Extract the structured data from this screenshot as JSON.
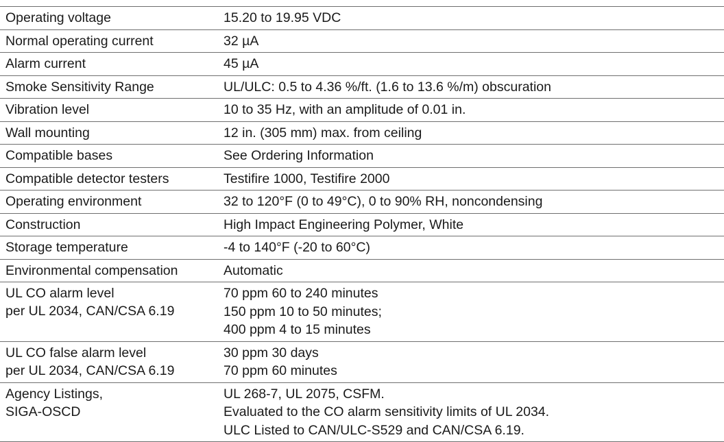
{
  "rows": [
    {
      "label": [
        "Operating voltage"
      ],
      "value": [
        "15.20 to 19.95 VDC"
      ]
    },
    {
      "label": [
        "Normal operating current"
      ],
      "value": [
        "32 µA"
      ]
    },
    {
      "label": [
        "Alarm current"
      ],
      "value": [
        "45 µA"
      ]
    },
    {
      "label": [
        "Smoke Sensitivity Range"
      ],
      "value": [
        "UL/ULC: 0.5 to 4.36 %/ft. (1.6 to 13.6 %/m) obscuration"
      ]
    },
    {
      "label": [
        "Vibration level"
      ],
      "value": [
        "10 to 35 Hz, with an amplitude of 0.01 in."
      ]
    },
    {
      "label": [
        "Wall mounting"
      ],
      "value": [
        "12 in. (305 mm) max. from ceiling"
      ]
    },
    {
      "label": [
        "Compatible bases"
      ],
      "value": [
        "See Ordering Information"
      ]
    },
    {
      "label": [
        "Compatible detector testers"
      ],
      "value": [
        "Testifire 1000, Testifire 2000"
      ]
    },
    {
      "label": [
        "Operating environment"
      ],
      "value": [
        "32 to 120°F (0 to 49°C), 0 to 90% RH, noncondensing"
      ]
    },
    {
      "label": [
        "Construction"
      ],
      "value": [
        "High Impact Engineering Polymer, White"
      ]
    },
    {
      "label": [
        "Storage temperature"
      ],
      "value": [
        "-4 to 140°F (-20 to 60°C)"
      ]
    },
    {
      "label": [
        "Environmental compensation"
      ],
      "value": [
        "Automatic"
      ]
    },
    {
      "label": [
        "UL CO alarm level",
        "per UL 2034, CAN/CSA 6.19"
      ],
      "value": [
        "70 ppm 60 to 240 minutes",
        "150 ppm 10 to 50 minutes;",
        "400 ppm 4 to 15 minutes"
      ]
    },
    {
      "label": [
        "UL CO false alarm level",
        "per UL 2034, CAN/CSA 6.19"
      ],
      "value": [
        "30 ppm 30 days",
        "70 ppm 60 minutes"
      ]
    },
    {
      "label": [
        "Agency Listings,",
        "SIGA-OSCD"
      ],
      "value": [
        "UL 268-7, UL 2075, CSFM.",
        "Evaluated to the CO alarm sensitivity limits of UL 2034.",
        "ULC Listed to CAN/ULC-S529 and CAN/CSA 6.19."
      ]
    }
  ]
}
